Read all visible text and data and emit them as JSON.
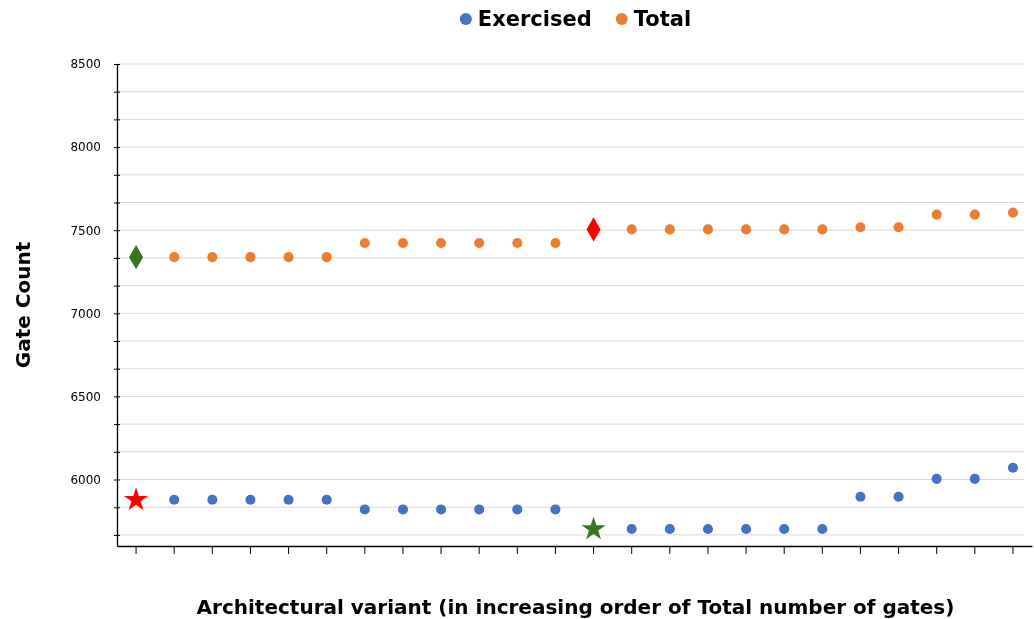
{
  "chart_data": {
    "type": "scatter",
    "xlabel": "Architectural variant (in increasing order of Total number of gates)",
    "ylabel": "Gate Count",
    "categories": [
      null,
      null,
      null,
      null,
      null,
      null,
      null,
      null,
      null,
      null,
      null,
      null,
      null,
      null,
      null,
      null,
      null,
      null,
      null,
      null,
      null,
      null,
      null,
      null
    ],
    "series": [
      {
        "name": "Exercised",
        "color": "#4472c4",
        "marker": "circle",
        "values": [
          null,
          5878,
          5878,
          5878,
          5878,
          5878,
          5820,
          5820,
          5820,
          5820,
          5820,
          5820,
          null,
          5702,
          5702,
          5702,
          5702,
          5702,
          5702,
          5896,
          5896,
          6004,
          6004,
          6071
        ]
      },
      {
        "name": "Total",
        "color": "#ed7d31",
        "marker": "circle",
        "values": [
          null,
          7338,
          7338,
          7338,
          7338,
          7338,
          7423,
          7423,
          7423,
          7423,
          7423,
          7423,
          null,
          7505,
          7505,
          7505,
          7505,
          7505,
          7505,
          7518,
          7518,
          7594,
          7594,
          7606
        ]
      },
      {
        "color": "#ff0000",
        "marker": "star",
        "values": [
          5878,
          null,
          null,
          null,
          null,
          null,
          null,
          null,
          null,
          null,
          null,
          null,
          null,
          null,
          null,
          null,
          null,
          null,
          null,
          null,
          null,
          null,
          null,
          null
        ]
      },
      {
        "color": "#38761d",
        "marker": "star",
        "values": [
          null,
          null,
          null,
          null,
          null,
          null,
          null,
          null,
          null,
          null,
          null,
          null,
          5702,
          null,
          null,
          null,
          null,
          null,
          null,
          null,
          null,
          null,
          null,
          null
        ]
      },
      {
        "color": "#38761d",
        "marker": "diamond",
        "values": [
          7338,
          null,
          null,
          null,
          null,
          null,
          null,
          null,
          null,
          null,
          null,
          null,
          null,
          null,
          null,
          null,
          null,
          null,
          null,
          null,
          null,
          null,
          null,
          null
        ]
      },
      {
        "color": "#ff0000",
        "marker": "diamond",
        "values": [
          null,
          null,
          null,
          null,
          null,
          null,
          null,
          null,
          null,
          null,
          null,
          null,
          7505,
          null,
          null,
          null,
          null,
          null,
          null,
          null,
          null,
          null,
          null,
          null
        ]
      }
    ],
    "ylim": [
      5600,
      8500
    ],
    "yticks": [
      {
        "value": 5666.67,
        "label": null
      },
      {
        "value": 5833.33,
        "label": null
      },
      6000,
      {
        "value": 6166.67,
        "label": null
      },
      {
        "value": 6333.33,
        "label": null
      },
      6500,
      {
        "value": 6666.67,
        "label": null
      },
      {
        "value": 6833.33,
        "label": null
      },
      7000,
      {
        "value": 7166.67,
        "label": null
      },
      {
        "value": 7333.33,
        "label": null
      },
      7500,
      {
        "value": 7666.67,
        "label": null
      },
      {
        "value": 7833.33,
        "label": null
      },
      8000,
      {
        "value": 8166.67,
        "label": null
      },
      {
        "value": 8333.33,
        "label": null
      },
      8500
    ],
    "grid": "y",
    "legend": "top",
    "tick_labels": "y"
  }
}
